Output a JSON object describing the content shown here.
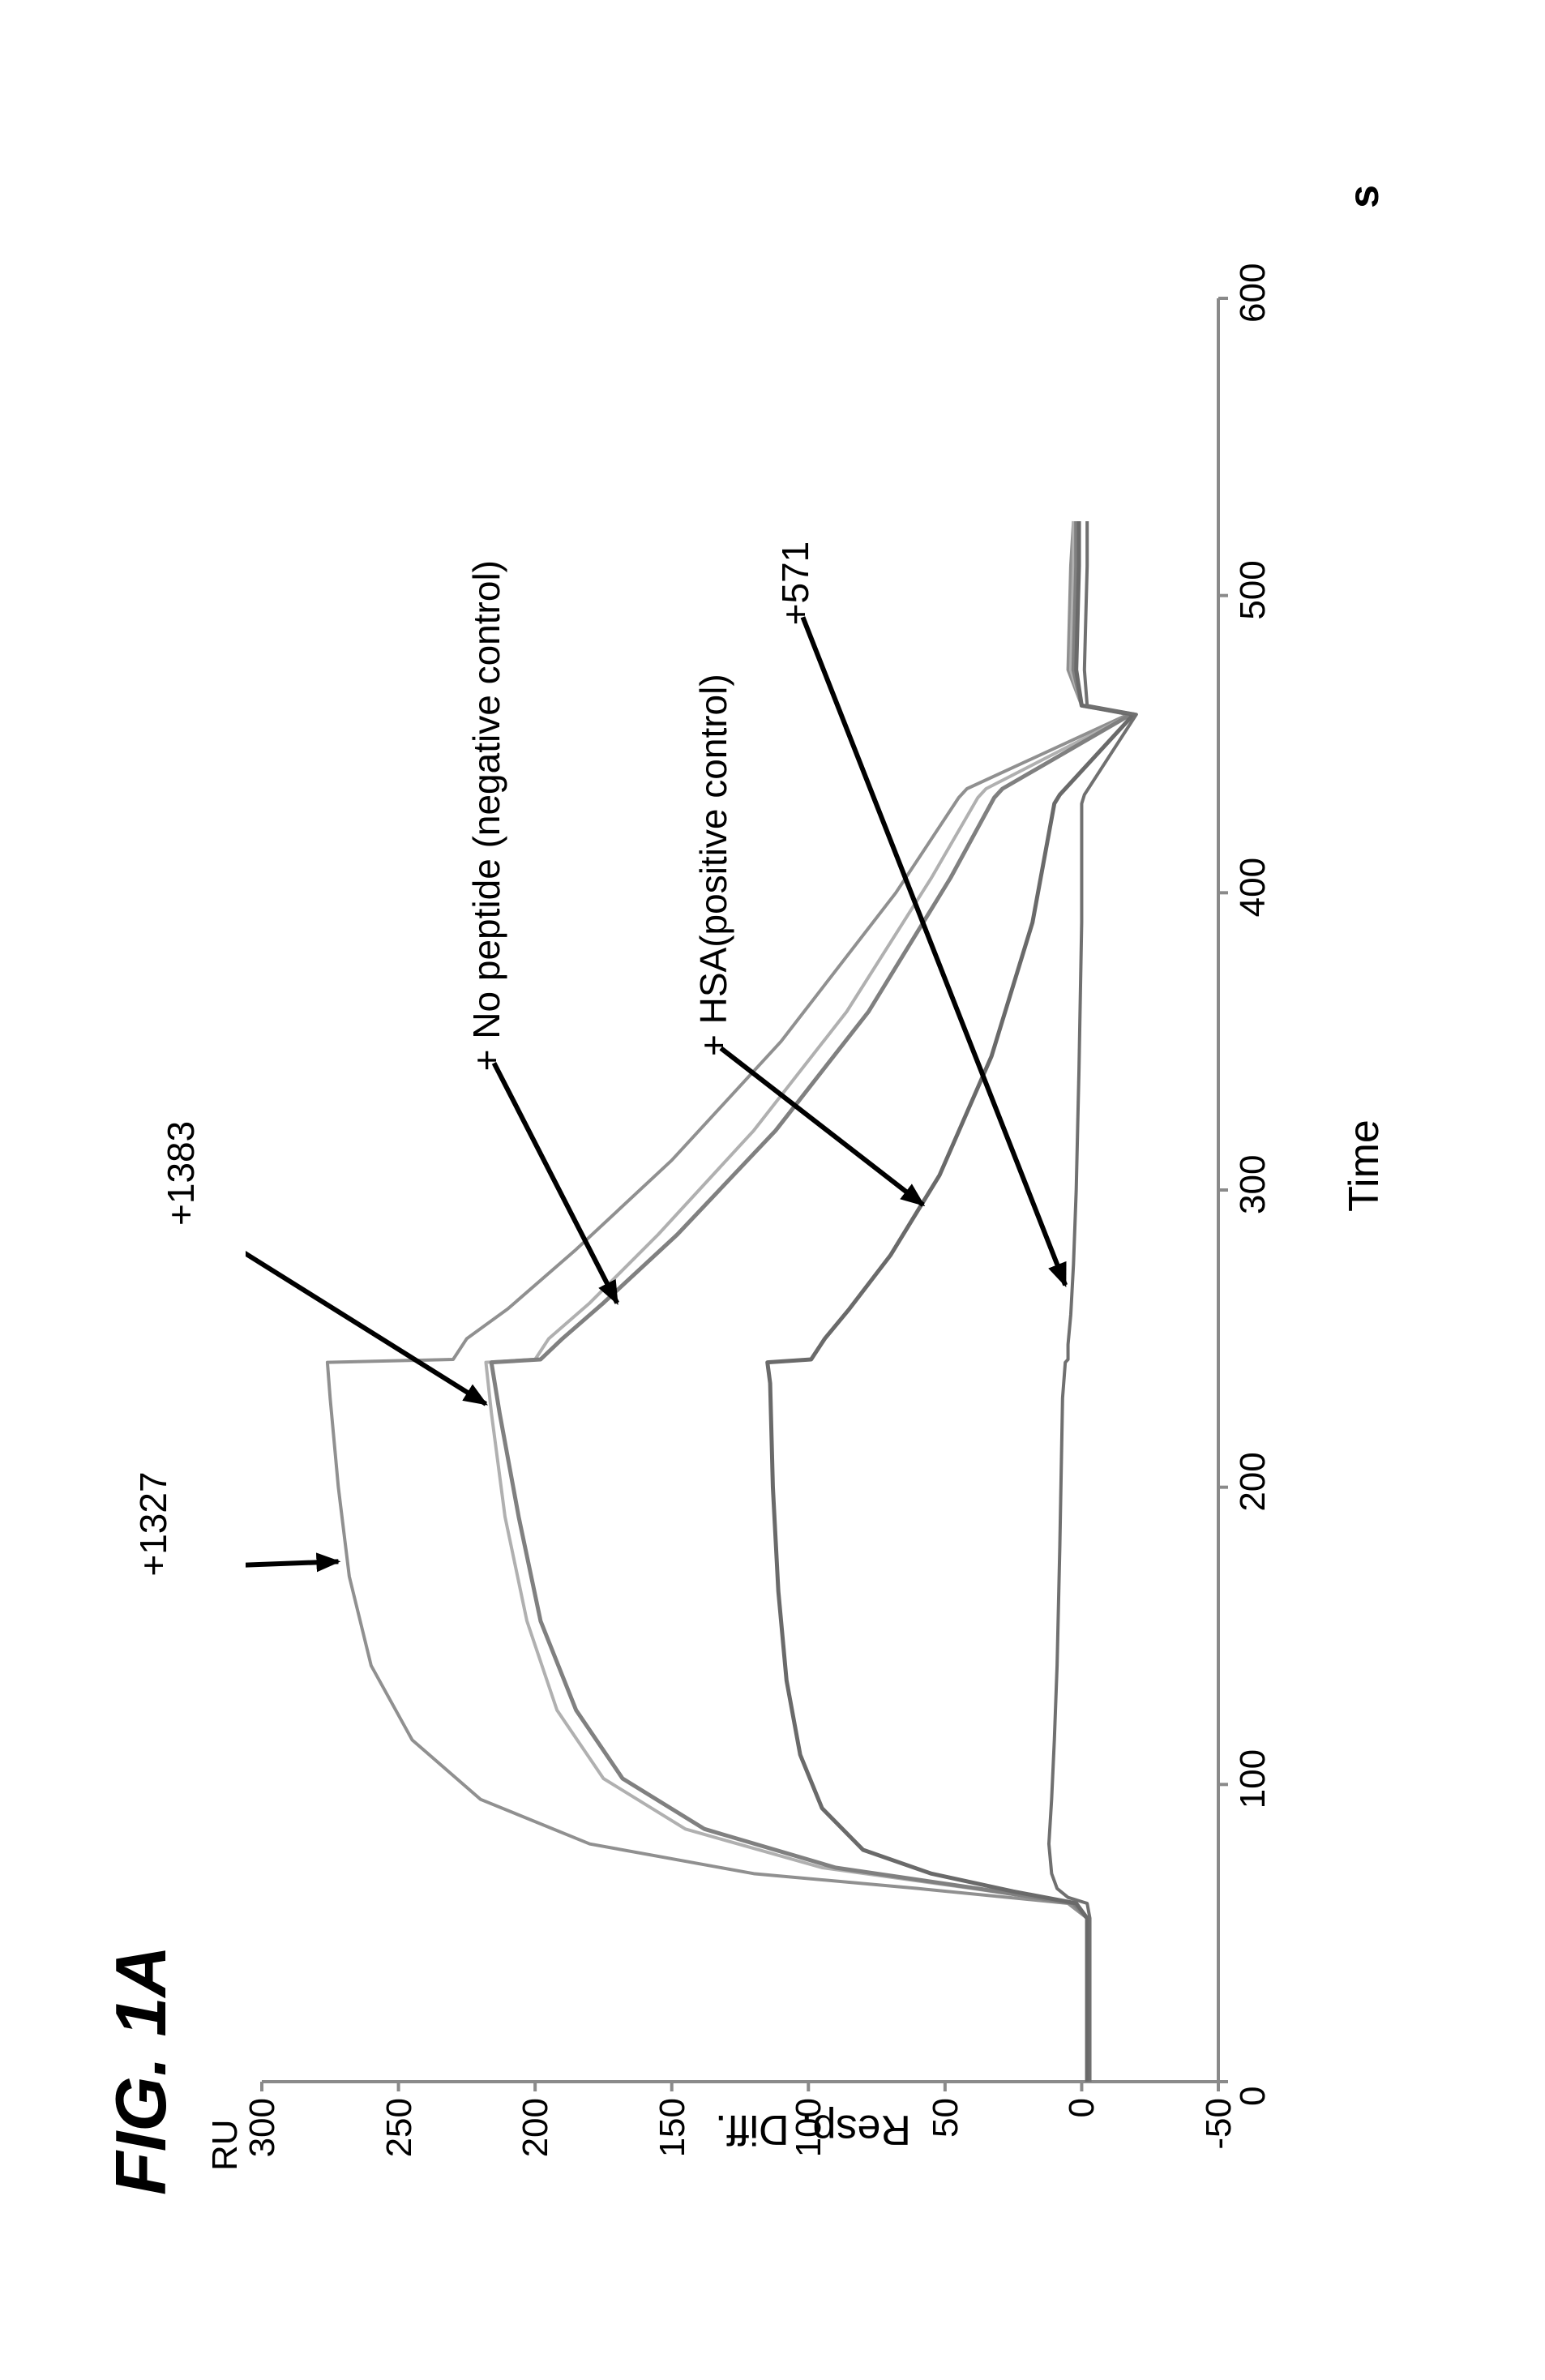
{
  "figure_label": "FIG. 1A",
  "chart": {
    "type": "line",
    "y_unit": "RU",
    "x_unit": "s",
    "xlabel": "Time",
    "ylabel": "Resp. Diff.",
    "xlim": [
      0,
      600
    ],
    "ylim": [
      -50,
      300
    ],
    "xtick_step": 100,
    "ytick_step": 50,
    "xticks": [
      0,
      100,
      200,
      300,
      400,
      500,
      600
    ],
    "yticks": [
      -50,
      0,
      50,
      100,
      150,
      200,
      250,
      300
    ],
    "background_color": "#ffffff",
    "axis_color": "#8a8a8a",
    "axis_linewidth": 4,
    "tick_fontsize": 44,
    "label_fontsize": 52,
    "series": [
      {
        "name": "+1327",
        "color": "#909090",
        "linewidth": 4,
        "x": [
          55,
          60,
          65,
          70,
          80,
          95,
          115,
          140,
          170,
          200,
          230,
          242,
          243,
          250,
          260,
          280,
          310,
          350,
          400,
          432,
          435,
          460,
          463,
          475,
          510,
          525
        ],
        "y": [
          -2,
          5,
          60,
          120,
          180,
          220,
          245,
          260,
          268,
          272,
          275,
          276,
          230,
          225,
          210,
          185,
          150,
          110,
          68,
          45,
          42,
          -17,
          0,
          5,
          4,
          3
        ]
      },
      {
        "name": "+1383",
        "color": "#b0b0b0",
        "linewidth": 4,
        "x": [
          55,
          60,
          65,
          72,
          85,
          102,
          125,
          155,
          190,
          225,
          242,
          243,
          250,
          262,
          285,
          320,
          360,
          405,
          432,
          435,
          460,
          463,
          475,
          510,
          525
        ],
        "y": [
          -2,
          3,
          40,
          95,
          145,
          175,
          192,
          203,
          211,
          216,
          218,
          200,
          195,
          180,
          155,
          120,
          86,
          55,
          38,
          35,
          -18,
          0,
          4,
          3,
          3
        ]
      },
      {
        "name": "+ No peptide (negative control)",
        "color": "#808080",
        "linewidth": 5,
        "x": [
          55,
          60,
          65,
          72,
          85,
          102,
          125,
          155,
          190,
          225,
          242,
          243,
          250,
          262,
          285,
          320,
          360,
          405,
          432,
          435,
          460,
          463,
          475,
          510,
          525
        ],
        "y": [
          -2,
          3,
          38,
          90,
          138,
          168,
          185,
          198,
          206,
          213,
          216,
          198,
          190,
          175,
          148,
          112,
          78,
          48,
          32,
          29,
          -18,
          0,
          3,
          2,
          2
        ]
      },
      {
        "name": "+ HSA(positive control)",
        "color": "#6a6a6a",
        "linewidth": 5,
        "x": [
          55,
          60,
          64,
          70,
          78,
          92,
          110,
          135,
          165,
          200,
          235,
          242,
          243,
          250,
          260,
          278,
          305,
          345,
          390,
          430,
          433,
          460,
          463,
          475,
          510,
          525
        ],
        "y": [
          -2,
          2,
          25,
          55,
          80,
          95,
          103,
          108,
          111,
          113,
          114,
          115,
          99,
          94,
          85,
          70,
          52,
          33,
          18,
          10,
          8,
          -19,
          0,
          2,
          1,
          1
        ]
      },
      {
        "name": "+571",
        "color": "#707070",
        "linewidth": 4,
        "x": [
          55,
          60,
          62,
          65,
          70,
          80,
          95,
          115,
          140,
          180,
          230,
          242,
          243,
          248,
          258,
          275,
          300,
          340,
          390,
          430,
          433,
          460,
          463,
          475,
          510,
          525
        ],
        "y": [
          -3,
          -2,
          5,
          9,
          11,
          12,
          11,
          10,
          9,
          8,
          7,
          6,
          5,
          5,
          4,
          3,
          2,
          1,
          0,
          0,
          -1,
          -20,
          -2,
          -1,
          -2,
          -2
        ]
      }
    ],
    "annotations": [
      {
        "text": "+1327",
        "tx": 170,
        "ty": 340,
        "ax": 175,
        "ay": 272
      },
      {
        "text": "+1383",
        "tx": 288,
        "ty": 330,
        "ax": 228,
        "ay": 218
      },
      {
        "text": "+ No peptide (negative control)",
        "tx": 340,
        "ty": 218,
        "ax": 262,
        "ay": 170
      },
      {
        "text": "+ HSA(positive control)",
        "tx": 345,
        "ty": 135,
        "ax": 295,
        "ay": 58
      },
      {
        "text": "+571",
        "tx": 490,
        "ty": 105,
        "ax": 268,
        "ay": 6
      }
    ],
    "annotation_arrow_color": "#000000",
    "annotation_arrow_width": 6
  }
}
